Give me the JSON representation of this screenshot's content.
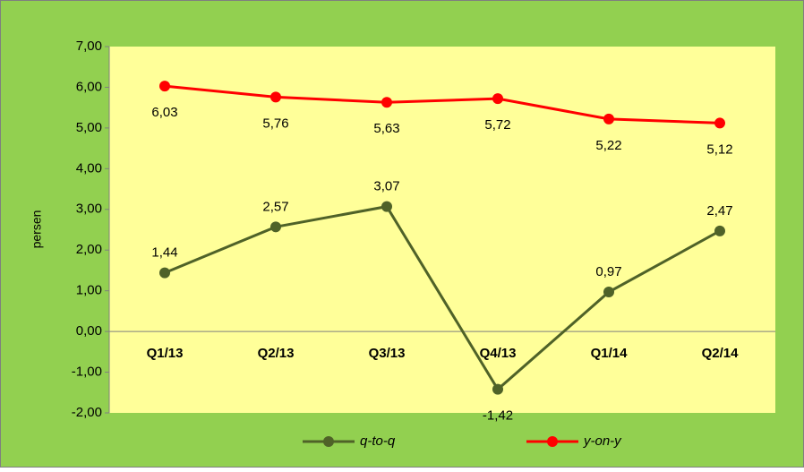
{
  "chart_data": {
    "type": "line",
    "y_label": "persen",
    "categories": [
      "Q1/13",
      "Q2/13",
      "Q3/13",
      "Q4/13",
      "Q1/14",
      "Q2/14"
    ],
    "series": [
      {
        "name": "q-to-q",
        "color": "#4f6228",
        "values": [
          1.44,
          2.57,
          3.07,
          -1.42,
          0.97,
          2.47
        ],
        "value_labels": [
          "1,44",
          "2,57",
          "3,07",
          "-1,42",
          "0,97",
          "2,47"
        ]
      },
      {
        "name": "y-on-y",
        "color": "#ff0000",
        "values": [
          6.03,
          5.76,
          5.63,
          5.72,
          5.22,
          5.12
        ],
        "value_labels": [
          "6,03",
          "5,76",
          "5,63",
          "5,72",
          "5,22",
          "5,12"
        ]
      }
    ],
    "ylim": [
      -2,
      7
    ],
    "yticks": [
      {
        "value": -2,
        "label": "-2,00"
      },
      {
        "value": -1,
        "label": "-1,00"
      },
      {
        "value": 0,
        "label": "0,00"
      },
      {
        "value": 1,
        "label": "1,00"
      },
      {
        "value": 2,
        "label": "2,00"
      },
      {
        "value": 3,
        "label": "3,00"
      },
      {
        "value": 4,
        "label": "4,00"
      },
      {
        "value": 5,
        "label": "5,00"
      },
      {
        "value": 6,
        "label": "6,00"
      },
      {
        "value": 7,
        "label": "7,00"
      }
    ],
    "grid": false,
    "legend": "bottom"
  }
}
